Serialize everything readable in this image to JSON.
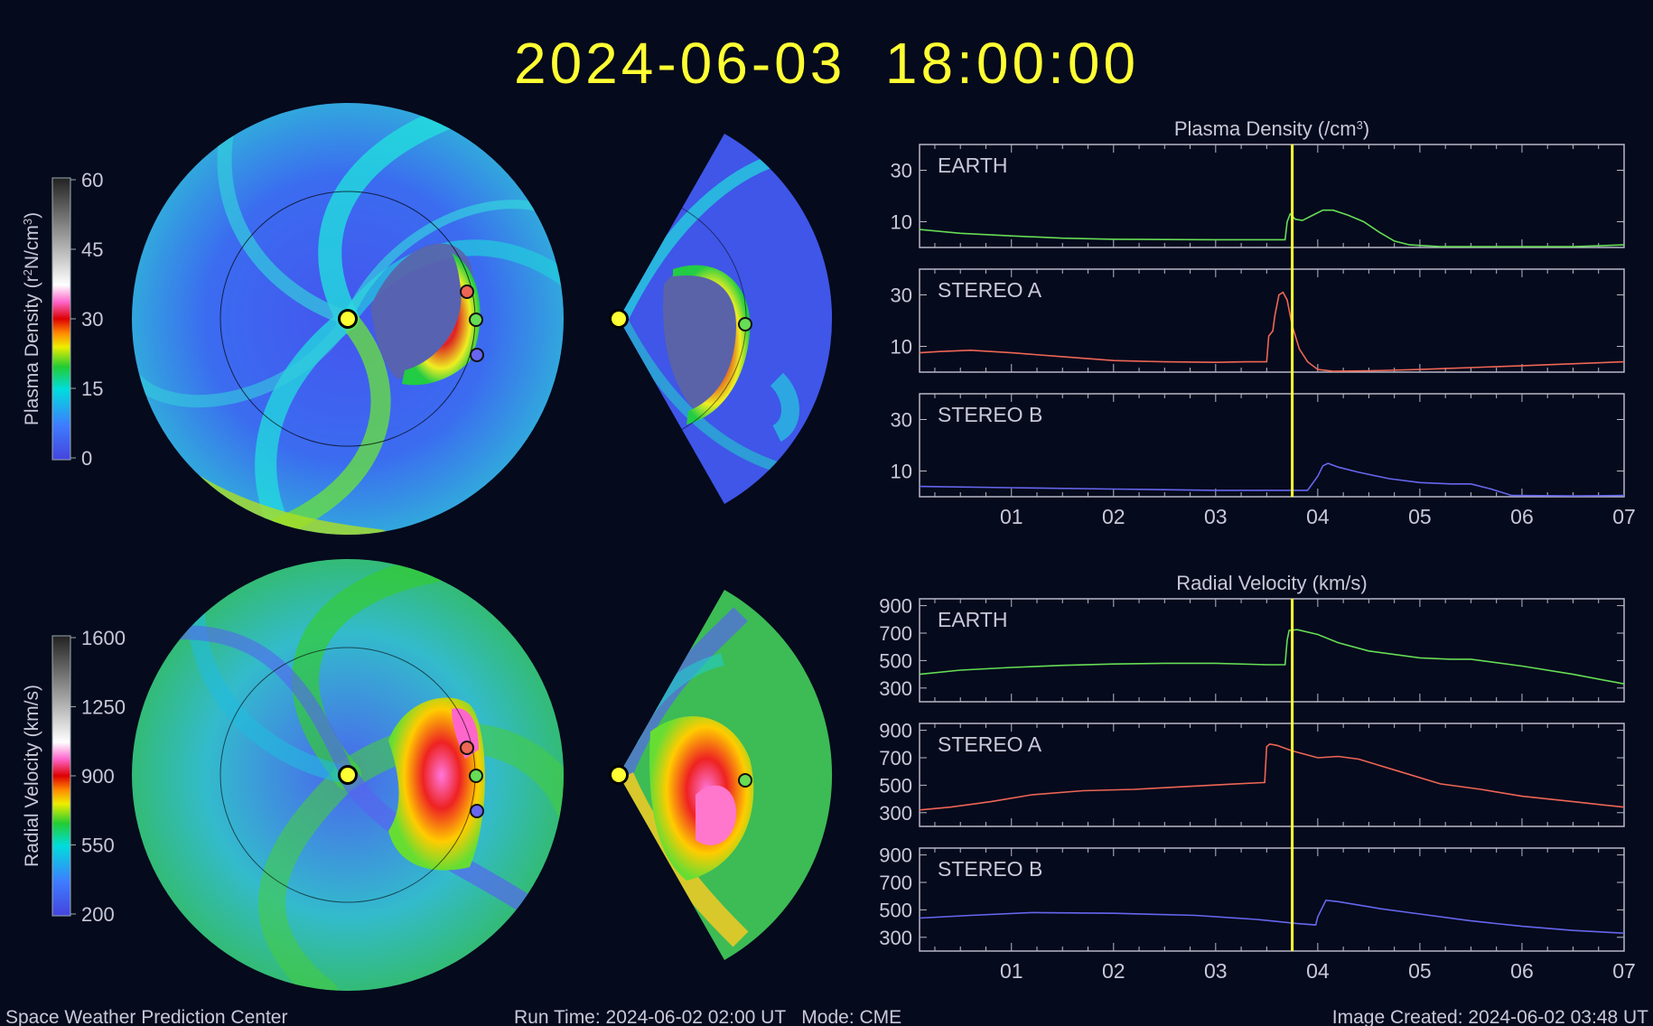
{
  "header": {
    "timestamp": "2024-06-03  18:00:00"
  },
  "footer": {
    "left": "Space Weather Prediction Center",
    "center": "Run Time: 2024-06-02 02:00 UT   Mode: CME",
    "right": "Image Created: 2024-06-02 03:48 UT"
  },
  "colors": {
    "background": "#050a1c",
    "timestamp": "#ffff33",
    "current_time_marker": "#ffff33",
    "earth": "#66dd55",
    "stereo_a": "#ee6655",
    "stereo_b": "#6666ee",
    "frame": "#b8b8c8",
    "text": "#c8c8d8"
  },
  "colorbars": {
    "density": {
      "label": "Plasma Density (r",
      "label_sup": "2",
      "label_tail": "N/cm",
      "label_sup2": "3",
      "label_end": ")",
      "ticks": [
        "0",
        "15",
        "30",
        "45",
        "60"
      ],
      "min": 0,
      "max": 60
    },
    "velocity": {
      "label": "Radial Velocity (km/s)",
      "ticks": [
        "200",
        "550",
        "900",
        "1250",
        "1600"
      ],
      "min": 200,
      "max": 1600
    }
  },
  "chart_data": [
    {
      "type": "line",
      "title": "Plasma Density (/cm",
      "title_sup": "3",
      "title_end": ")",
      "x_ticks": [
        "01",
        "02",
        "03",
        "04",
        "05",
        "06",
        "07"
      ],
      "xlim": [
        0.1,
        7.0
      ],
      "ylim": [
        0,
        40
      ],
      "y_ticks": [
        "10",
        "30"
      ],
      "current_time": 3.75,
      "panels": [
        {
          "name": "EARTH",
          "x": [
            0.1,
            0.5,
            1.0,
            1.5,
            2.0,
            2.5,
            3.0,
            3.5,
            3.68,
            3.7,
            3.73,
            3.78,
            3.85,
            3.95,
            4.05,
            4.15,
            4.3,
            4.45,
            4.6,
            4.75,
            4.9,
            5.2,
            5.6,
            6.0,
            6.5,
            7.0
          ],
          "y": [
            7.0,
            5.5,
            4.5,
            3.6,
            3.2,
            3.1,
            3.0,
            3.0,
            3.0,
            10.0,
            13.0,
            11.0,
            10.5,
            12.5,
            14.5,
            14.5,
            12.5,
            10.0,
            6.0,
            2.5,
            1.0,
            0.3,
            0.3,
            0.3,
            0.3,
            1.0
          ]
        },
        {
          "name": "STEREO A",
          "x": [
            0.1,
            0.3,
            0.6,
            1.0,
            1.5,
            2.0,
            2.5,
            3.0,
            3.3,
            3.5,
            3.52,
            3.56,
            3.58,
            3.62,
            3.66,
            3.7,
            3.75,
            3.82,
            3.9,
            4.0,
            4.15,
            4.5,
            5.0,
            6.0,
            7.0
          ],
          "y": [
            7.5,
            8.0,
            8.5,
            7.5,
            6.0,
            4.5,
            4.0,
            3.8,
            4.0,
            4.0,
            14.0,
            16.0,
            22.0,
            30.0,
            31.0,
            28.0,
            18.0,
            9.0,
            4.0,
            1.0,
            0.3,
            0.5,
            1.0,
            2.5,
            4.0
          ]
        },
        {
          "name": "STEREO B",
          "x": [
            0.1,
            1.0,
            2.0,
            3.0,
            3.5,
            3.9,
            4.0,
            4.05,
            4.1,
            4.2,
            4.4,
            4.7,
            5.0,
            5.3,
            5.5,
            5.7,
            5.9,
            6.5,
            7.0
          ],
          "y": [
            4.0,
            3.5,
            3.0,
            2.5,
            2.5,
            2.5,
            8.0,
            12.0,
            13.0,
            11.5,
            9.5,
            7.0,
            5.5,
            5.0,
            5.0,
            3.0,
            0.5,
            0.3,
            0.5
          ]
        }
      ]
    },
    {
      "type": "line",
      "title": "Radial Velocity (km/s)",
      "x_ticks": [
        "01",
        "02",
        "03",
        "04",
        "05",
        "06",
        "07"
      ],
      "xlim": [
        0.1,
        7.0
      ],
      "ylim": [
        200,
        950
      ],
      "y_ticks": [
        "300",
        "500",
        "700",
        "900"
      ],
      "current_time": 3.75,
      "panels": [
        {
          "name": "EARTH",
          "x": [
            0.1,
            0.5,
            1.0,
            1.5,
            2.0,
            2.5,
            3.0,
            3.5,
            3.68,
            3.7,
            3.72,
            3.8,
            4.0,
            4.2,
            4.5,
            5.0,
            5.3,
            5.5,
            6.0,
            6.5,
            7.0
          ],
          "y": [
            400,
            430,
            450,
            465,
            475,
            480,
            480,
            470,
            470,
            650,
            720,
            725,
            690,
            630,
            570,
            520,
            510,
            510,
            460,
            400,
            330
          ]
        },
        {
          "name": "STEREO A",
          "x": [
            0.1,
            0.4,
            0.8,
            1.2,
            1.7,
            2.2,
            2.7,
            3.2,
            3.48,
            3.5,
            3.53,
            3.6,
            3.75,
            4.0,
            4.2,
            4.4,
            4.8,
            5.2,
            5.6,
            6.0,
            6.5,
            7.0
          ],
          "y": [
            320,
            340,
            380,
            430,
            460,
            470,
            490,
            510,
            520,
            780,
            800,
            790,
            750,
            700,
            710,
            690,
            600,
            510,
            470,
            420,
            380,
            340
          ]
        },
        {
          "name": "STEREO B",
          "x": [
            0.1,
            0.6,
            1.2,
            2.0,
            2.8,
            3.4,
            3.8,
            3.98,
            4.0,
            4.08,
            4.2,
            4.6,
            5.0,
            5.5,
            6.0,
            6.5,
            7.0
          ],
          "y": [
            440,
            460,
            480,
            475,
            460,
            430,
            400,
            390,
            450,
            570,
            560,
            510,
            470,
            420,
            380,
            350,
            330
          ]
        }
      ]
    }
  ]
}
